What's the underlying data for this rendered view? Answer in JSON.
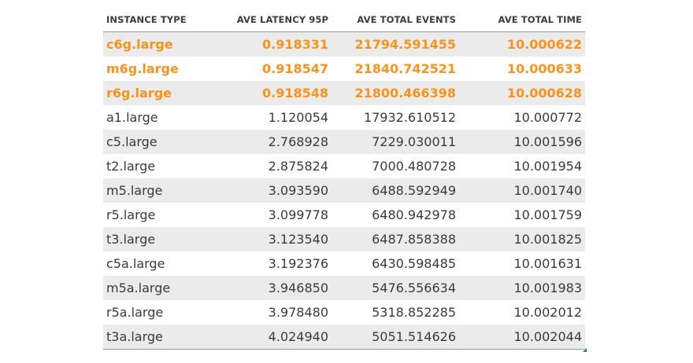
{
  "table": {
    "headers": [
      "INSTANCE TYPE",
      "AVE LATENCY 95P",
      "AVE TOTAL EVENTS",
      "AVE TOTAL TIME"
    ],
    "highlight_color": "#f7941d",
    "rows": [
      {
        "instance": "c6g.large",
        "latency": "0.918331",
        "events": "21794.591455",
        "time": "10.000622",
        "highlight": true
      },
      {
        "instance": "m6g.large",
        "latency": "0.918547",
        "events": "21840.742521",
        "time": "10.000633",
        "highlight": true
      },
      {
        "instance": "r6g.large",
        "latency": "0.918548",
        "events": "21800.466398",
        "time": "10.000628",
        "highlight": true
      },
      {
        "instance": "a1.large",
        "latency": "1.120054",
        "events": "17932.610512",
        "time": "10.000772",
        "highlight": false
      },
      {
        "instance": "c5.large",
        "latency": "2.768928",
        "events": "7229.030011",
        "time": "10.001596",
        "highlight": false
      },
      {
        "instance": "t2.large",
        "latency": "2.875824",
        "events": "7000.480728",
        "time": "10.001954",
        "highlight": false
      },
      {
        "instance": "m5.large",
        "latency": "3.093590",
        "events": "6488.592949",
        "time": "10.001740",
        "highlight": false
      },
      {
        "instance": "r5.large",
        "latency": "3.099778",
        "events": "6480.942978",
        "time": "10.001759",
        "highlight": false
      },
      {
        "instance": "t3.large",
        "latency": "3.123540",
        "events": "6487.858388",
        "time": "10.001825",
        "highlight": false
      },
      {
        "instance": "c5a.large",
        "latency": "3.192376",
        "events": "6430.598485",
        "time": "10.001631",
        "highlight": false
      },
      {
        "instance": "m5a.large",
        "latency": "3.946850",
        "events": "5476.556634",
        "time": "10.001983",
        "highlight": false
      },
      {
        "instance": "r5a.large",
        "latency": "3.978480",
        "events": "5318.852285",
        "time": "10.002012",
        "highlight": false
      },
      {
        "instance": "t3a.large",
        "latency": "4.024940",
        "events": "5051.514626",
        "time": "10.002044",
        "highlight": false
      }
    ]
  }
}
